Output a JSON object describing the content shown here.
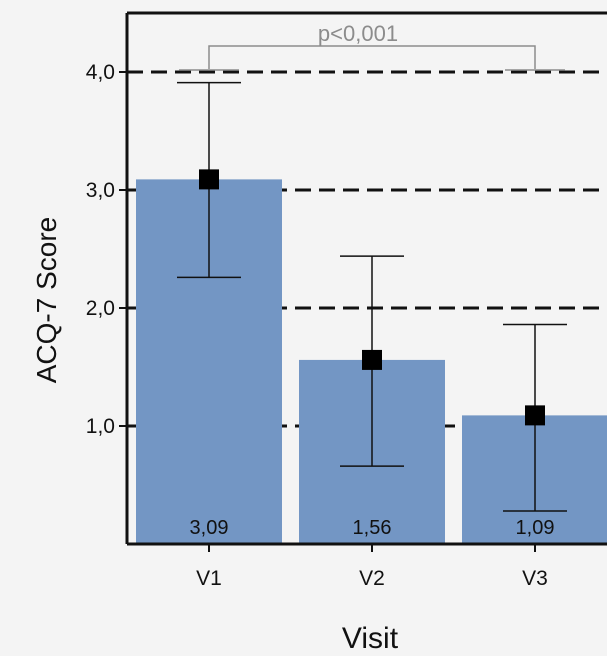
{
  "chart_data": {
    "type": "bar",
    "title": "",
    "xlabel": "Visit",
    "ylabel": "ACQ-7 Score",
    "categories": [
      "V1",
      "V2",
      "V3"
    ],
    "values": [
      3.09,
      1.56,
      1.09
    ],
    "value_labels": [
      "3,09",
      "1,56",
      "1,09"
    ],
    "error_low": [
      2.26,
      0.66,
      0.28
    ],
    "error_high": [
      3.91,
      2.44,
      1.86
    ],
    "ylim": [
      0,
      4.5
    ],
    "yticks": [
      1,
      2,
      3,
      4
    ],
    "ytick_labels": [
      "1,0",
      "2,0",
      "3,0",
      "4,0"
    ],
    "grid": "dashed horizontal",
    "annotation": "p<0,001",
    "colors": {
      "bar": "#7396c4",
      "marker": "#000000",
      "bracket": "#8c8c8c"
    }
  }
}
